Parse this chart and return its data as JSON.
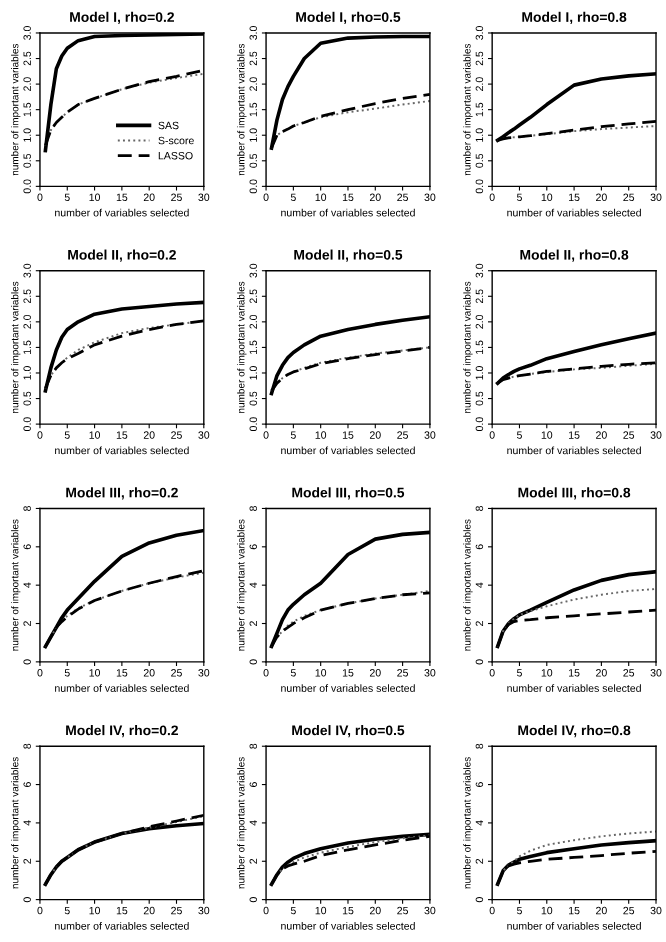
{
  "chart_data": [
    {
      "type": "line",
      "title": "Model I, rho=0.2",
      "xlabel": "number of variables selected",
      "ylabel": "number of important variables",
      "x": [
        1,
        2,
        3,
        4,
        5,
        7,
        10,
        15,
        20,
        25,
        30
      ],
      "xlim": [
        0,
        30
      ],
      "ylim": [
        0,
        3
      ],
      "xticks": [
        0,
        5,
        10,
        15,
        20,
        25,
        30
      ],
      "yticks": [
        {
          "value": 0,
          "label": "0.0"
        },
        {
          "value": 0.5,
          "label": "0.5"
        },
        {
          "value": 1,
          "label": "1.0"
        },
        {
          "value": 1.5,
          "label": "1.5"
        },
        {
          "value": 2,
          "label": "2.0"
        },
        {
          "value": 2.5,
          "label": "2.5"
        },
        {
          "value": 3,
          "label": "3.0"
        }
      ],
      "legend": "lower right",
      "series": [
        {
          "name": "SAS",
          "color": "#000000",
          "line_style": "solid",
          "values": [
            0.7,
            1.6,
            2.3,
            2.55,
            2.7,
            2.85,
            2.93,
            2.95,
            2.96,
            2.97,
            2.98
          ]
        },
        {
          "name": "S-score",
          "color": "#666666",
          "line_style": "dotted",
          "values": [
            0.8,
            1.1,
            1.25,
            1.35,
            1.45,
            1.6,
            1.72,
            1.9,
            2.03,
            2.12,
            2.2
          ]
        },
        {
          "name": "LASSO",
          "color": "#000000",
          "line_style": "dashed",
          "values": [
            0.8,
            1.1,
            1.25,
            1.35,
            1.45,
            1.6,
            1.72,
            1.9,
            2.05,
            2.15,
            2.27
          ]
        }
      ]
    },
    {
      "type": "line",
      "title": "Model I, rho=0.5",
      "xlabel": "number of variables selected",
      "ylabel": "number of important variables",
      "x": [
        1,
        2,
        3,
        4,
        5,
        7,
        10,
        15,
        20,
        25,
        30
      ],
      "xlim": [
        0,
        30
      ],
      "ylim": [
        0,
        3
      ],
      "xticks": [
        0,
        5,
        10,
        15,
        20,
        25,
        30
      ],
      "yticks": [
        {
          "value": 0,
          "label": "0.0"
        },
        {
          "value": 0.5,
          "label": "0.5"
        },
        {
          "value": 1,
          "label": "1.0"
        },
        {
          "value": 1.5,
          "label": "1.5"
        },
        {
          "value": 2,
          "label": "2.0"
        },
        {
          "value": 2.5,
          "label": "2.5"
        },
        {
          "value": 3,
          "label": "3.0"
        }
      ],
      "series": [
        {
          "color": "#000000",
          "line_style": "solid",
          "values": [
            0.75,
            1.3,
            1.7,
            1.95,
            2.15,
            2.5,
            2.8,
            2.9,
            2.92,
            2.93,
            2.93
          ]
        },
        {
          "color": "#666666",
          "line_style": "dotted",
          "values": [
            0.75,
            1.0,
            1.07,
            1.12,
            1.18,
            1.25,
            1.35,
            1.45,
            1.52,
            1.6,
            1.67
          ]
        },
        {
          "color": "#000000",
          "line_style": "dashed",
          "values": [
            0.75,
            1.0,
            1.07,
            1.12,
            1.18,
            1.25,
            1.37,
            1.5,
            1.62,
            1.72,
            1.8
          ]
        }
      ]
    },
    {
      "type": "line",
      "title": "Model I, rho=0.8",
      "xlabel": "number of variables selected",
      "ylabel": "number of important variables",
      "x": [
        1,
        2,
        3,
        4,
        5,
        7,
        10,
        15,
        20,
        25,
        30
      ],
      "xlim": [
        0,
        30
      ],
      "ylim": [
        0,
        3
      ],
      "xticks": [
        0,
        5,
        10,
        15,
        20,
        25,
        30
      ],
      "yticks": [
        {
          "value": 0,
          "label": "0.0"
        },
        {
          "value": 0.5,
          "label": "0.5"
        },
        {
          "value": 1,
          "label": "1.0"
        },
        {
          "value": 1.5,
          "label": "1.5"
        },
        {
          "value": 2,
          "label": "2.0"
        },
        {
          "value": 2.5,
          "label": "2.5"
        },
        {
          "value": 3,
          "label": "3.0"
        }
      ],
      "series": [
        {
          "color": "#000000",
          "line_style": "solid",
          "values": [
            0.9,
            0.97,
            1.05,
            1.12,
            1.2,
            1.35,
            1.6,
            1.98,
            2.1,
            2.16,
            2.2
          ]
        },
        {
          "color": "#666666",
          "line_style": "dotted",
          "values": [
            0.9,
            0.93,
            0.95,
            0.96,
            0.97,
            0.99,
            1.02,
            1.08,
            1.12,
            1.15,
            1.18
          ]
        },
        {
          "color": "#000000",
          "line_style": "dashed",
          "values": [
            0.9,
            0.93,
            0.95,
            0.96,
            0.97,
            0.99,
            1.03,
            1.1,
            1.17,
            1.22,
            1.27
          ]
        }
      ]
    },
    {
      "type": "line",
      "title": "Model II, rho=0.2",
      "xlabel": "number of variables selected",
      "ylabel": "number of important variables",
      "x": [
        1,
        2,
        3,
        4,
        5,
        7,
        10,
        15,
        20,
        25,
        30
      ],
      "xlim": [
        0,
        30
      ],
      "ylim": [
        0,
        3
      ],
      "xticks": [
        0,
        5,
        10,
        15,
        20,
        25,
        30
      ],
      "yticks": [
        {
          "value": 0,
          "label": "0.0"
        },
        {
          "value": 0.5,
          "label": "0.5"
        },
        {
          "value": 1,
          "label": "1.0"
        },
        {
          "value": 1.5,
          "label": "1.5"
        },
        {
          "value": 2,
          "label": "2.0"
        },
        {
          "value": 2.5,
          "label": "2.5"
        },
        {
          "value": 3,
          "label": "3.0"
        }
      ],
      "series": [
        {
          "color": "#000000",
          "line_style": "solid",
          "values": [
            0.65,
            1.1,
            1.45,
            1.7,
            1.85,
            2.0,
            2.15,
            2.25,
            2.3,
            2.35,
            2.38
          ]
        },
        {
          "color": "#666666",
          "line_style": "dotted",
          "values": [
            0.7,
            0.95,
            1.1,
            1.2,
            1.3,
            1.45,
            1.6,
            1.78,
            1.88,
            1.95,
            2.02
          ]
        },
        {
          "color": "#000000",
          "line_style": "dashed",
          "values": [
            0.7,
            0.95,
            1.1,
            1.2,
            1.28,
            1.38,
            1.55,
            1.72,
            1.85,
            1.95,
            2.02
          ]
        }
      ]
    },
    {
      "type": "line",
      "title": "Model II, rho=0.5",
      "xlabel": "number of variables selected",
      "ylabel": "number of important variables",
      "x": [
        1,
        2,
        3,
        4,
        5,
        7,
        10,
        15,
        20,
        25,
        30
      ],
      "xlim": [
        0,
        30
      ],
      "ylim": [
        0,
        3
      ],
      "xticks": [
        0,
        5,
        10,
        15,
        20,
        25,
        30
      ],
      "yticks": [
        {
          "value": 0,
          "label": "0.0"
        },
        {
          "value": 0.5,
          "label": "0.5"
        },
        {
          "value": 1,
          "label": "1.0"
        },
        {
          "value": 1.5,
          "label": "1.5"
        },
        {
          "value": 2,
          "label": "2.0"
        },
        {
          "value": 2.5,
          "label": "2.5"
        },
        {
          "value": 3,
          "label": "3.0"
        }
      ],
      "series": [
        {
          "color": "#000000",
          "line_style": "solid",
          "values": [
            0.6,
            0.95,
            1.15,
            1.3,
            1.4,
            1.55,
            1.72,
            1.85,
            1.95,
            2.03,
            2.1
          ]
        },
        {
          "color": "#666666",
          "line_style": "dotted",
          "values": [
            0.65,
            0.8,
            0.9,
            0.97,
            1.02,
            1.1,
            1.2,
            1.3,
            1.38,
            1.44,
            1.5
          ]
        },
        {
          "color": "#000000",
          "line_style": "dashed",
          "values": [
            0.65,
            0.8,
            0.9,
            0.97,
            1.02,
            1.08,
            1.18,
            1.28,
            1.36,
            1.43,
            1.5
          ]
        }
      ]
    },
    {
      "type": "line",
      "title": "Model II, rho=0.8",
      "xlabel": "number of variables selected",
      "ylabel": "number of important variables",
      "x": [
        1,
        2,
        3,
        4,
        5,
        7,
        10,
        15,
        20,
        25,
        30
      ],
      "xlim": [
        0,
        30
      ],
      "ylim": [
        0,
        3
      ],
      "xticks": [
        0,
        5,
        10,
        15,
        20,
        25,
        30
      ],
      "yticks": [
        {
          "value": 0,
          "label": "0.0"
        },
        {
          "value": 0.5,
          "label": "0.5"
        },
        {
          "value": 1,
          "label": "1.0"
        },
        {
          "value": 1.5,
          "label": "1.5"
        },
        {
          "value": 2,
          "label": "2.0"
        },
        {
          "value": 2.5,
          "label": "2.5"
        },
        {
          "value": 3,
          "label": "3.0"
        }
      ],
      "series": [
        {
          "color": "#000000",
          "line_style": "solid",
          "values": [
            0.8,
            0.9,
            0.97,
            1.03,
            1.08,
            1.15,
            1.28,
            1.42,
            1.55,
            1.67,
            1.78
          ]
        },
        {
          "color": "#666666",
          "line_style": "dotted",
          "values": [
            0.8,
            0.87,
            0.9,
            0.93,
            0.95,
            0.98,
            1.02,
            1.07,
            1.1,
            1.14,
            1.18
          ]
        },
        {
          "color": "#000000",
          "line_style": "dashed",
          "values": [
            0.8,
            0.87,
            0.9,
            0.93,
            0.95,
            0.98,
            1.03,
            1.08,
            1.13,
            1.17,
            1.2
          ]
        }
      ]
    },
    {
      "type": "line",
      "title": "Model III, rho=0.2",
      "xlabel": "number of variables selected",
      "ylabel": "number of important variables",
      "x": [
        1,
        2,
        3,
        4,
        5,
        7,
        10,
        15,
        20,
        25,
        30
      ],
      "xlim": [
        0,
        30
      ],
      "ylim": [
        0,
        8
      ],
      "xticks": [
        0,
        5,
        10,
        15,
        20,
        25,
        30
      ],
      "yticks": [
        0,
        2,
        4,
        6,
        8
      ],
      "series": [
        {
          "color": "#000000",
          "line_style": "solid",
          "values": [
            0.8,
            1.3,
            1.8,
            2.3,
            2.7,
            3.3,
            4.2,
            5.5,
            6.2,
            6.6,
            6.85
          ]
        },
        {
          "color": "#666666",
          "line_style": "dotted",
          "values": [
            0.8,
            1.3,
            1.8,
            2.1,
            2.4,
            2.8,
            3.2,
            3.7,
            4.1,
            4.4,
            4.65
          ]
        },
        {
          "color": "#000000",
          "line_style": "dashed",
          "values": [
            0.8,
            1.3,
            1.8,
            2.1,
            2.35,
            2.75,
            3.2,
            3.7,
            4.1,
            4.45,
            4.75
          ]
        }
      ]
    },
    {
      "type": "line",
      "title": "Model III, rho=0.5",
      "xlabel": "number of variables selected",
      "ylabel": "number of important variables",
      "x": [
        1,
        2,
        3,
        4,
        5,
        7,
        10,
        15,
        20,
        25,
        30
      ],
      "xlim": [
        0,
        30
      ],
      "ylim": [
        0,
        8
      ],
      "xticks": [
        0,
        5,
        10,
        15,
        20,
        25,
        30
      ],
      "yticks": [
        0,
        2,
        4,
        6,
        8
      ],
      "series": [
        {
          "color": "#000000",
          "line_style": "solid",
          "values": [
            0.8,
            1.5,
            2.2,
            2.7,
            3.0,
            3.5,
            4.1,
            5.6,
            6.4,
            6.65,
            6.75
          ]
        },
        {
          "color": "#666666",
          "line_style": "dotted",
          "values": [
            0.8,
            1.3,
            1.6,
            1.9,
            2.1,
            2.4,
            2.7,
            3.05,
            3.3,
            3.5,
            3.7
          ]
        },
        {
          "color": "#000000",
          "line_style": "dashed",
          "values": [
            0.8,
            1.3,
            1.6,
            1.8,
            2.0,
            2.3,
            2.7,
            3.05,
            3.3,
            3.5,
            3.6
          ]
        }
      ]
    },
    {
      "type": "line",
      "title": "Model III, rho=0.8",
      "xlabel": "number of variables selected",
      "ylabel": "number of important variables",
      "x": [
        1,
        2,
        3,
        4,
        5,
        7,
        10,
        15,
        20,
        25,
        30
      ],
      "xlim": [
        0,
        30
      ],
      "ylim": [
        0,
        8
      ],
      "xticks": [
        0,
        5,
        10,
        15,
        20,
        25,
        30
      ],
      "yticks": [
        0,
        2,
        4,
        6,
        8
      ],
      "series": [
        {
          "color": "#000000",
          "line_style": "solid",
          "values": [
            0.8,
            1.6,
            2.0,
            2.25,
            2.45,
            2.7,
            3.1,
            3.75,
            4.25,
            4.55,
            4.7
          ]
        },
        {
          "color": "#666666",
          "line_style": "dotted",
          "values": [
            0.8,
            1.6,
            2.0,
            2.25,
            2.45,
            2.65,
            2.9,
            3.25,
            3.5,
            3.7,
            3.8
          ]
        },
        {
          "color": "#000000",
          "line_style": "dashed",
          "values": [
            0.8,
            1.6,
            1.95,
            2.1,
            2.15,
            2.2,
            2.3,
            2.4,
            2.5,
            2.6,
            2.7
          ]
        }
      ]
    },
    {
      "type": "line",
      "title": "Model IV, rho=0.2",
      "xlabel": "number of variables selected",
      "ylabel": "number of important variables",
      "x": [
        1,
        2,
        3,
        4,
        5,
        7,
        10,
        15,
        20,
        25,
        30
      ],
      "xlim": [
        0,
        30
      ],
      "ylim": [
        0,
        8
      ],
      "xticks": [
        0,
        5,
        10,
        15,
        20,
        25,
        30
      ],
      "yticks": [
        0,
        2,
        4,
        6,
        8
      ],
      "series": [
        {
          "color": "#000000",
          "line_style": "solid",
          "values": [
            0.8,
            1.3,
            1.7,
            2.0,
            2.2,
            2.6,
            3.0,
            3.45,
            3.7,
            3.85,
            3.97
          ]
        },
        {
          "color": "#666666",
          "line_style": "dotted",
          "values": [
            0.8,
            1.3,
            1.7,
            2.0,
            2.2,
            2.6,
            3.0,
            3.45,
            3.75,
            4.05,
            4.35
          ]
        },
        {
          "color": "#000000",
          "line_style": "dashed",
          "values": [
            0.8,
            1.3,
            1.7,
            2.0,
            2.2,
            2.6,
            3.0,
            3.45,
            3.8,
            4.1,
            4.4
          ]
        }
      ]
    },
    {
      "type": "line",
      "title": "Model IV, rho=0.5",
      "xlabel": "number of variables selected",
      "ylabel": "number of important variables",
      "x": [
        1,
        2,
        3,
        4,
        5,
        7,
        10,
        15,
        20,
        25,
        30
      ],
      "xlim": [
        0,
        30
      ],
      "ylim": [
        0,
        8
      ],
      "xticks": [
        0,
        5,
        10,
        15,
        20,
        25,
        30
      ],
      "yticks": [
        0,
        2,
        4,
        6,
        8
      ],
      "series": [
        {
          "color": "#000000",
          "line_style": "solid",
          "values": [
            0.8,
            1.3,
            1.7,
            1.95,
            2.15,
            2.4,
            2.65,
            2.95,
            3.15,
            3.3,
            3.4
          ]
        },
        {
          "color": "#666666",
          "line_style": "dotted",
          "values": [
            0.8,
            1.3,
            1.6,
            1.8,
            1.95,
            2.2,
            2.45,
            2.75,
            3.0,
            3.2,
            3.35
          ]
        },
        {
          "color": "#000000",
          "line_style": "dashed",
          "values": [
            0.8,
            1.3,
            1.6,
            1.75,
            1.85,
            2.0,
            2.3,
            2.6,
            2.85,
            3.1,
            3.3
          ]
        }
      ]
    },
    {
      "type": "line",
      "title": "Model IV, rho=0.8",
      "xlabel": "number of variables selected",
      "ylabel": "number of important variables",
      "x": [
        1,
        2,
        3,
        4,
        5,
        7,
        10,
        15,
        20,
        25,
        30
      ],
      "xlim": [
        0,
        30
      ],
      "ylim": [
        0,
        8
      ],
      "xticks": [
        0,
        5,
        10,
        15,
        20,
        25,
        30
      ],
      "yticks": [
        0,
        2,
        4,
        6,
        8
      ],
      "series": [
        {
          "color": "#000000",
          "line_style": "solid",
          "values": [
            0.8,
            1.5,
            1.8,
            1.95,
            2.1,
            2.25,
            2.45,
            2.65,
            2.85,
            2.97,
            3.07
          ]
        },
        {
          "color": "#666666",
          "line_style": "dotted",
          "values": [
            0.8,
            1.5,
            1.8,
            2.0,
            2.25,
            2.55,
            2.85,
            3.1,
            3.3,
            3.45,
            3.55
          ]
        },
        {
          "color": "#000000",
          "line_style": "dashed",
          "values": [
            0.8,
            1.5,
            1.75,
            1.85,
            1.92,
            2.0,
            2.1,
            2.2,
            2.3,
            2.42,
            2.52
          ]
        }
      ]
    }
  ]
}
